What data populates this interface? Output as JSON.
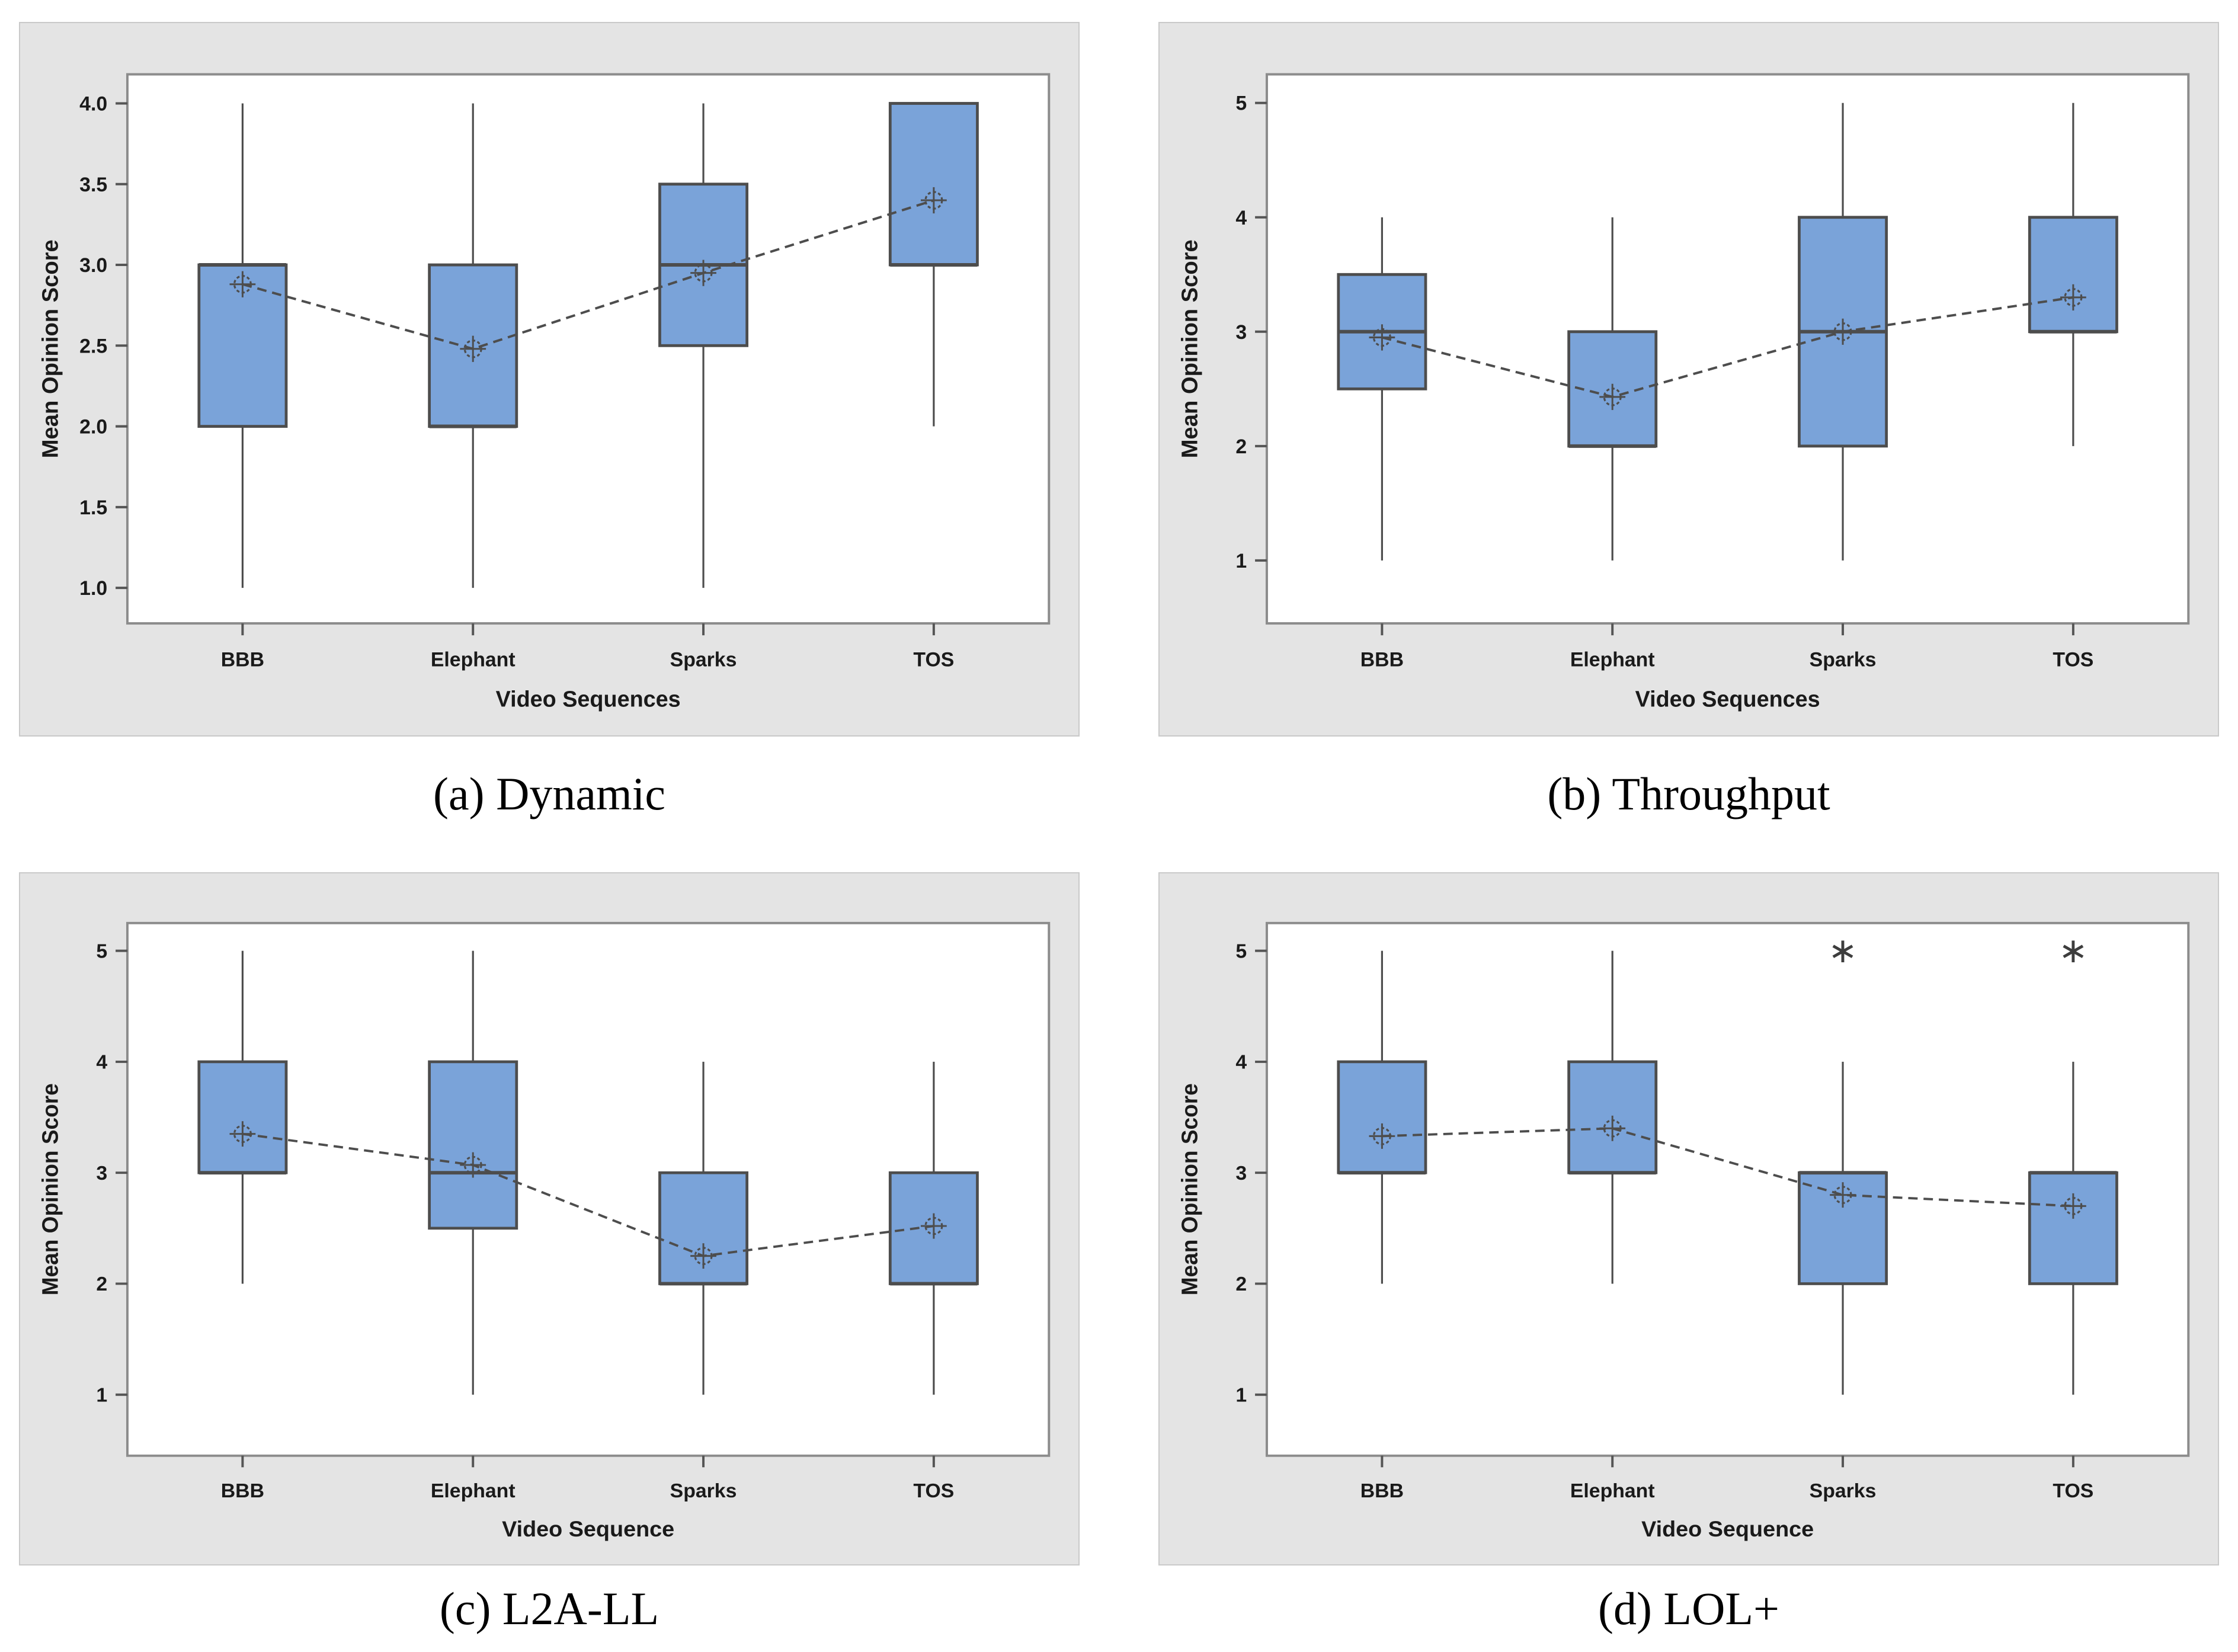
{
  "style": {
    "panel_bg": "#e4e4e4",
    "panel_border": "#c9c9c9",
    "plot_bg": "#ffffff",
    "frame": "#8c8c8c",
    "box_fill": "#7aa3d9",
    "box_stroke": "#4d4d4d",
    "whisker": "#4d4d4d",
    "mean_line": "#4d4d4d",
    "tick_color": "#555555",
    "text_color": "#1a1a1a",
    "outlier_color": "#3d3d3d"
  },
  "chart_data": [
    {
      "type": "box",
      "id": "a",
      "caption": "(a) Dynamic",
      "xlabel": "Video Sequences",
      "ylabel": "Mean Opinion Score",
      "categories": [
        "BBB",
        "Elephant",
        "Sparks",
        "TOS"
      ],
      "y_ticks": [
        {
          "v": 1.0,
          "label": "1.0"
        },
        {
          "v": 1.5,
          "label": "1.5"
        },
        {
          "v": 2.0,
          "label": "2.0"
        },
        {
          "v": 2.5,
          "label": "2.5"
        },
        {
          "v": 3.0,
          "label": "3.0"
        },
        {
          "v": 3.5,
          "label": "3.5"
        },
        {
          "v": 4.0,
          "label": "4.0"
        }
      ],
      "ylim": [
        0.78,
        4.18
      ],
      "grid": false,
      "legend": "none",
      "boxes": [
        {
          "category": "BBB",
          "whisker_low": 1.0,
          "q1": 2.0,
          "median": 3.0,
          "q3": 3.0,
          "whisker_high": 4.0,
          "mean": 2.88,
          "outliers": []
        },
        {
          "category": "Elephant",
          "whisker_low": 1.0,
          "q1": 2.0,
          "median": 2.0,
          "q3": 3.0,
          "whisker_high": 4.0,
          "mean": 2.48,
          "outliers": []
        },
        {
          "category": "Sparks",
          "whisker_low": 1.0,
          "q1": 2.5,
          "median": 3.0,
          "q3": 3.5,
          "whisker_high": 4.0,
          "mean": 2.95,
          "outliers": []
        },
        {
          "category": "TOS",
          "whisker_low": 2.0,
          "q1": 3.0,
          "median": 3.0,
          "q3": 4.0,
          "whisker_high": 4.0,
          "mean": 3.4,
          "outliers": []
        }
      ]
    },
    {
      "type": "box",
      "id": "b",
      "caption": "(b) Throughput",
      "xlabel": "Video Sequences",
      "ylabel": "Mean Opinion Score",
      "categories": [
        "BBB",
        "Elephant",
        "Sparks",
        "TOS"
      ],
      "y_ticks": [
        {
          "v": 1,
          "label": "1"
        },
        {
          "v": 2,
          "label": "2"
        },
        {
          "v": 3,
          "label": "3"
        },
        {
          "v": 4,
          "label": "4"
        },
        {
          "v": 5,
          "label": "5"
        }
      ],
      "ylim": [
        0.45,
        5.25
      ],
      "grid": false,
      "legend": "none",
      "boxes": [
        {
          "category": "BBB",
          "whisker_low": 1.0,
          "q1": 2.5,
          "median": 3.0,
          "q3": 3.5,
          "whisker_high": 4.0,
          "mean": 2.95,
          "outliers": []
        },
        {
          "category": "Elephant",
          "whisker_low": 1.0,
          "q1": 2.0,
          "median": 2.0,
          "q3": 3.0,
          "whisker_high": 4.0,
          "mean": 2.43,
          "outliers": []
        },
        {
          "category": "Sparks",
          "whisker_low": 1.0,
          "q1": 2.0,
          "median": 3.0,
          "q3": 4.0,
          "whisker_high": 5.0,
          "mean": 3.0,
          "outliers": []
        },
        {
          "category": "TOS",
          "whisker_low": 2.0,
          "q1": 3.0,
          "median": 3.0,
          "q3": 4.0,
          "whisker_high": 5.0,
          "mean": 3.3,
          "outliers": []
        }
      ]
    },
    {
      "type": "box",
      "id": "c",
      "caption": "(c) L2A-LL",
      "xlabel": "Video Sequence",
      "ylabel": "Mean Opinion Score",
      "categories": [
        "BBB",
        "Elephant",
        "Sparks",
        "TOS"
      ],
      "y_ticks": [
        {
          "v": 1,
          "label": "1"
        },
        {
          "v": 2,
          "label": "2"
        },
        {
          "v": 3,
          "label": "3"
        },
        {
          "v": 4,
          "label": "4"
        },
        {
          "v": 5,
          "label": "5"
        }
      ],
      "ylim": [
        0.45,
        5.25
      ],
      "grid": false,
      "legend": "none",
      "boxes": [
        {
          "category": "BBB",
          "whisker_low": 2.0,
          "q1": 3.0,
          "median": 3.0,
          "q3": 4.0,
          "whisker_high": 5.0,
          "mean": 3.35,
          "outliers": []
        },
        {
          "category": "Elephant",
          "whisker_low": 1.0,
          "q1": 2.5,
          "median": 3.0,
          "q3": 4.0,
          "whisker_high": 5.0,
          "mean": 3.07,
          "outliers": []
        },
        {
          "category": "Sparks",
          "whisker_low": 1.0,
          "q1": 2.0,
          "median": 2.0,
          "q3": 3.0,
          "whisker_high": 4.0,
          "mean": 2.25,
          "outliers": []
        },
        {
          "category": "TOS",
          "whisker_low": 1.0,
          "q1": 2.0,
          "median": 2.0,
          "q3": 3.0,
          "whisker_high": 4.0,
          "mean": 2.52,
          "outliers": []
        }
      ]
    },
    {
      "type": "box",
      "id": "d",
      "caption": "(d) LOL+",
      "xlabel": "Video Sequence",
      "ylabel": "Mean Opinion Score",
      "categories": [
        "BBB",
        "Elephant",
        "Sparks",
        "TOS"
      ],
      "y_ticks": [
        {
          "v": 1,
          "label": "1"
        },
        {
          "v": 2,
          "label": "2"
        },
        {
          "v": 3,
          "label": "3"
        },
        {
          "v": 4,
          "label": "4"
        },
        {
          "v": 5,
          "label": "5"
        }
      ],
      "ylim": [
        0.45,
        5.25
      ],
      "grid": false,
      "legend": "none",
      "boxes": [
        {
          "category": "BBB",
          "whisker_low": 2.0,
          "q1": 3.0,
          "median": 3.0,
          "q3": 4.0,
          "whisker_high": 5.0,
          "mean": 3.33,
          "outliers": []
        },
        {
          "category": "Elephant",
          "whisker_low": 2.0,
          "q1": 3.0,
          "median": 3.0,
          "q3": 4.0,
          "whisker_high": 5.0,
          "mean": 3.4,
          "outliers": []
        },
        {
          "category": "Sparks",
          "whisker_low": 1.0,
          "q1": 2.0,
          "median": 3.0,
          "q3": 3.0,
          "whisker_high": 4.0,
          "mean": 2.8,
          "outliers": [
            5.0
          ]
        },
        {
          "category": "TOS",
          "whisker_low": 1.0,
          "q1": 2.0,
          "median": 3.0,
          "q3": 3.0,
          "whisker_high": 4.0,
          "mean": 2.7,
          "outliers": [
            5.0
          ]
        }
      ]
    }
  ]
}
